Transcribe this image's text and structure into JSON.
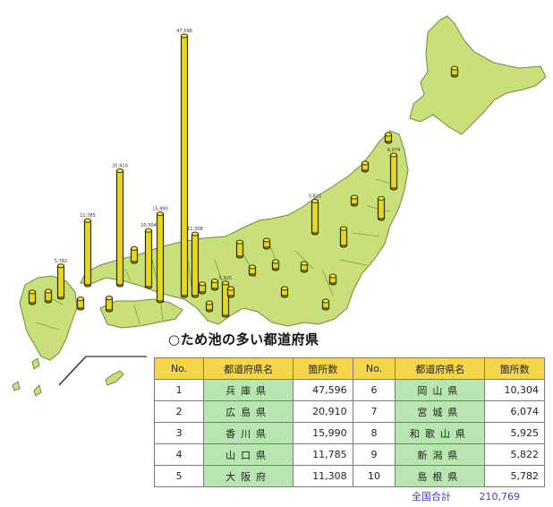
{
  "title": "○ため池の多い都道府県",
  "table": {
    "headers": [
      "No.",
      "都道府県名",
      "箇所数",
      "No.",
      "都道府県名",
      "箇所数"
    ],
    "left": [
      {
        "rank": "1",
        "name": "兵庫県",
        "count": "47,596"
      },
      {
        "rank": "2",
        "name": "広島県",
        "count": "20,910"
      },
      {
        "rank": "3",
        "name": "香川県",
        "count": "15,990"
      },
      {
        "rank": "4",
        "name": "山口県",
        "count": "11,785"
      },
      {
        "rank": "5",
        "name": "大阪府",
        "count": "11,308"
      }
    ],
    "right": [
      {
        "rank": "6",
        "name": "岡山県",
        "count": "10,304"
      },
      {
        "rank": "7",
        "name": "宮城県",
        "count": "6,074"
      },
      {
        "rank": "8",
        "name": "和歌山県",
        "count": "5,925"
      },
      {
        "rank": "9",
        "name": "新潟県",
        "count": "5,822"
      },
      {
        "rank": "10",
        "name": "島根県",
        "count": "5,782"
      }
    ]
  },
  "total": {
    "label": "全国合計",
    "value": "210,769"
  },
  "colors": {
    "land": "#c9e07a",
    "bar": "#e6d81f",
    "header": "#f5d64a",
    "name_cell": "#b8e6b0",
    "total_text": "#4a3ab8"
  },
  "bars": [
    {
      "label": "47,596",
      "value": 47596
    },
    {
      "label": "20,910",
      "value": 20910
    },
    {
      "label": "15,990",
      "value": 15990
    },
    {
      "label": "11,785",
      "value": 11785
    },
    {
      "label": "11,308",
      "value": 11308
    },
    {
      "label": "10,304",
      "value": 10304
    },
    {
      "label": "6,074",
      "value": 6074
    },
    {
      "label": "5,925",
      "value": 5925
    },
    {
      "label": "5,822",
      "value": 5822
    },
    {
      "label": "5,782",
      "value": 5782
    },
    {
      "label": "",
      "value": 3700
    },
    {
      "label": "",
      "value": 3100
    },
    {
      "label": "",
      "value": 2600
    },
    {
      "label": "",
      "value": 2400
    },
    {
      "label": "",
      "value": 2200
    },
    {
      "label": "",
      "value": 2000
    },
    {
      "label": "",
      "value": 1800
    },
    {
      "label": "",
      "value": 1700
    },
    {
      "label": "",
      "value": 1500
    },
    {
      "label": "",
      "value": 1400
    },
    {
      "label": "",
      "value": 1300
    },
    {
      "label": "",
      "value": 1200
    },
    {
      "label": "",
      "value": 1100
    },
    {
      "label": "",
      "value": 1000
    },
    {
      "label": "",
      "value": 900
    },
    {
      "label": "",
      "value": 800
    },
    {
      "label": "",
      "value": 700
    },
    {
      "label": "",
      "value": 600
    },
    {
      "label": "",
      "value": 500
    },
    {
      "label": "",
      "value": 400
    },
    {
      "label": "",
      "value": 300
    },
    {
      "label": "",
      "value": 200
    },
    {
      "label": "",
      "value": 100
    }
  ]
}
